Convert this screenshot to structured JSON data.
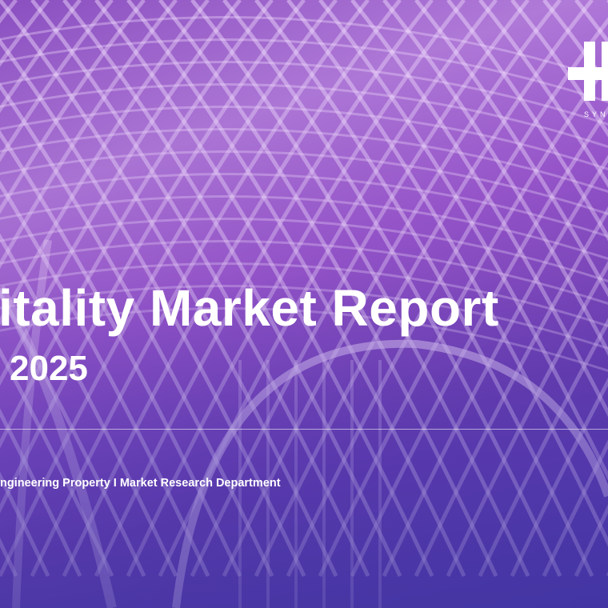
{
  "cover": {
    "title": "itality Market Report",
    "year": "2025",
    "subtitle": "ngineering Property I Market Research Department",
    "logo_text": "SYN"
  },
  "colors": {
    "accent": "#9a58cc",
    "text": "#ffffff"
  }
}
